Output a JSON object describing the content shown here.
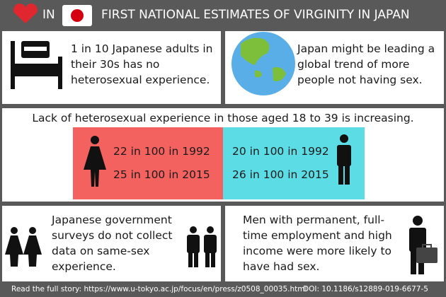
{
  "header": {
    "prefix": "IN",
    "title": "FIRST NATIONAL ESTIMATES OF VIRGINITY IN JAPAN"
  },
  "facts": {
    "thirties": "1 in 10 Japanese adults in their 30s has no heterosexual experience.",
    "trend": "Japan might be leading a global trend of more people not having sex."
  },
  "comparison": {
    "heading": "Lack of heterosexual experience in those aged 18 to 39 is increasing.",
    "women": [
      "22 in 100 in 1992",
      "25 in 100 in 2015"
    ],
    "men": [
      "20 in 100 in 1992",
      "26 in 100 in 2015"
    ]
  },
  "notes": {
    "same_sex": "Japanese government surveys do not collect data on same-sex experience.",
    "employment": "Men with permanent, full-time employment and high income were more likely to have had sex."
  },
  "footer": {
    "link": "Read the full story: https://www.u-tokyo.ac.jp/focus/en/press/z0508_00035.html",
    "doi": "DOI: 10.1186/s12889-019-6677-5"
  }
}
